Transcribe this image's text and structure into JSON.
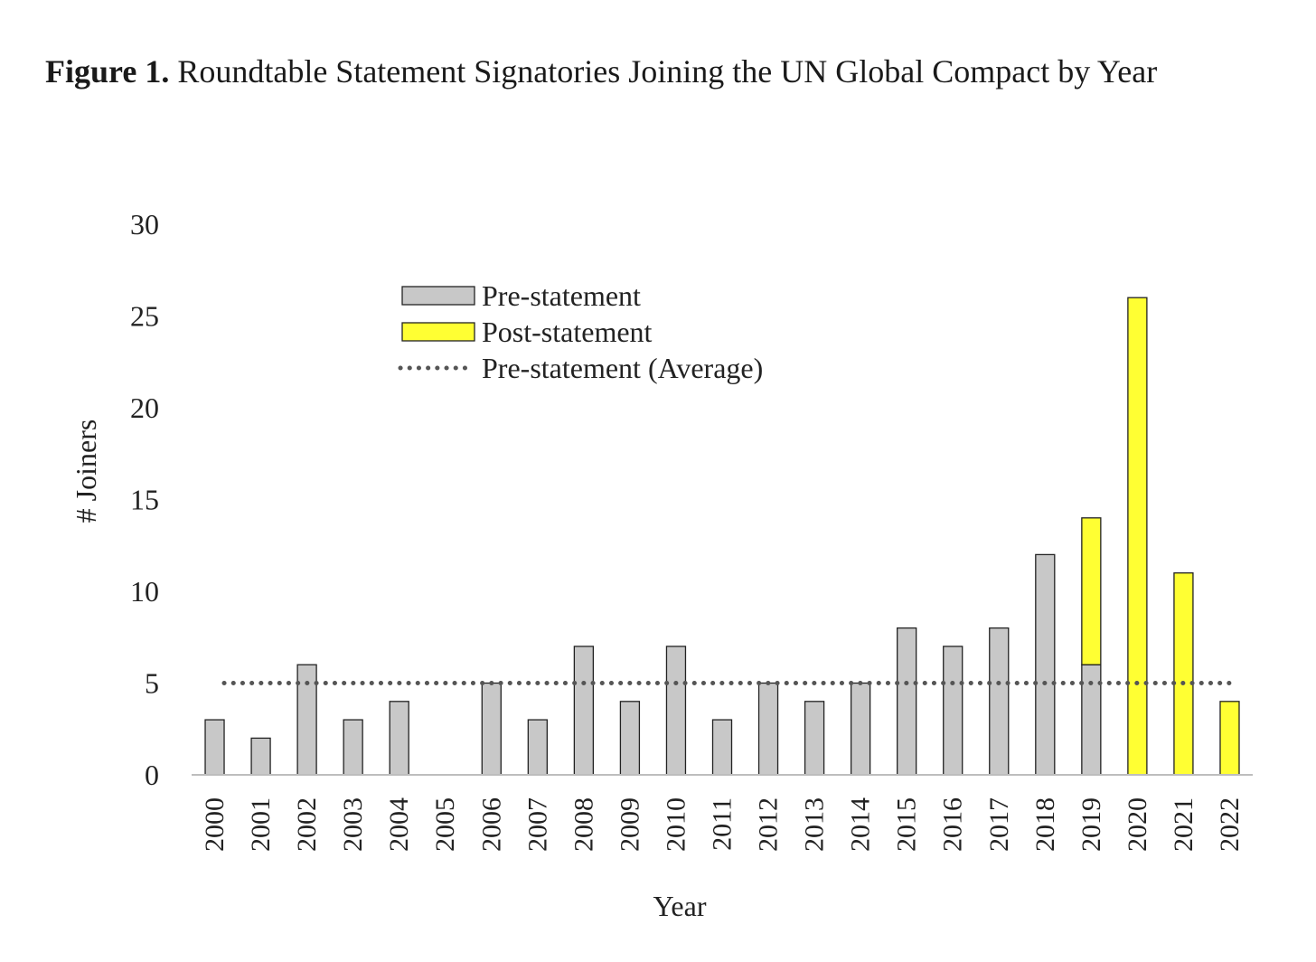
{
  "figure": {
    "label": "Figure 1.",
    "title": " Roundtable Statement Signatories Joining the UN Global Compact by Year"
  },
  "chart_data": {
    "type": "bar",
    "stacked": true,
    "xlabel": "Year",
    "ylabel": "# Joiners",
    "ylim": [
      0,
      30
    ],
    "yticks": [
      0,
      5,
      10,
      15,
      20,
      25,
      30
    ],
    "grid": false,
    "legend_position": "top-center",
    "categories": [
      "2000",
      "2001",
      "2002",
      "2003",
      "2004",
      "2005",
      "2006",
      "2007",
      "2008",
      "2009",
      "2010",
      "2011",
      "2012",
      "2013",
      "2014",
      "2015",
      "2016",
      "2017",
      "2018",
      "2019",
      "2020",
      "2021",
      "2022"
    ],
    "series": [
      {
        "name": "Pre-statement",
        "color": "#c8c8c8",
        "values": [
          3,
          2,
          6,
          3,
          4,
          0,
          5,
          3,
          7,
          4,
          7,
          3,
          5,
          4,
          5,
          8,
          7,
          8,
          12,
          6,
          0,
          0,
          0
        ]
      },
      {
        "name": "Post-statement",
        "color": "#ffff33",
        "values": [
          0,
          0,
          0,
          0,
          0,
          0,
          0,
          0,
          0,
          0,
          0,
          0,
          0,
          0,
          0,
          0,
          0,
          0,
          0,
          8,
          26,
          11,
          4
        ]
      }
    ],
    "reference_line": {
      "name": "Pre-statement (Average)",
      "value": 5,
      "style": "dotted",
      "color": "#555555"
    }
  }
}
